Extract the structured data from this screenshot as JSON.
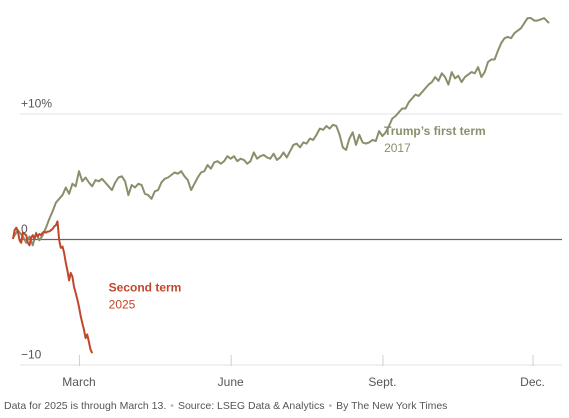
{
  "chart_data": {
    "type": "line",
    "y_unit": "% change",
    "ylim": [
      -10,
      18
    ],
    "yticks": [
      {
        "value": 10,
        "label": "+10%"
      },
      {
        "value": 0,
        "label": "0"
      },
      {
        "value": -10,
        "label": "−10"
      }
    ],
    "xticks": [
      {
        "day": 60,
        "label": "March"
      },
      {
        "day": 152,
        "label": "June"
      },
      {
        "day": 244,
        "label": "Sept."
      },
      {
        "day": 335,
        "label": "Dec."
      }
    ],
    "xlim": [
      0,
      365
    ],
    "grid": "horizontal",
    "series": [
      {
        "name": "Trump’s first term",
        "year": "2017",
        "color": "#8a8f6b",
        "label_at": {
          "day": 245,
          "value": 8.3
        },
        "points": [
          [
            20,
            0.1
          ],
          [
            23,
            0.7
          ],
          [
            26,
            0.2
          ],
          [
            28,
            -0.3
          ],
          [
            30,
            0.2
          ],
          [
            32,
            -0.5
          ],
          [
            34,
            0.5
          ],
          [
            36,
            -0.1
          ],
          [
            38,
            0.3
          ],
          [
            40,
            0.9
          ],
          [
            42,
            1.6
          ],
          [
            44,
            2.2
          ],
          [
            46,
            2.9
          ],
          [
            48,
            3.2
          ],
          [
            50,
            3.5
          ],
          [
            52,
            4.1
          ],
          [
            54,
            3.6
          ],
          [
            56,
            4.4
          ],
          [
            58,
            4.2
          ],
          [
            60,
            5.4
          ],
          [
            62,
            4.6
          ],
          [
            64,
            4.9
          ],
          [
            66,
            4.5
          ],
          [
            68,
            4.2
          ],
          [
            70,
            4.7
          ],
          [
            72,
            4.6
          ],
          [
            74,
            4.8
          ],
          [
            76,
            4.5
          ],
          [
            78,
            4.2
          ],
          [
            80,
            3.9
          ],
          [
            82,
            4.5
          ],
          [
            84,
            4.9
          ],
          [
            86,
            5.0
          ],
          [
            88,
            4.6
          ],
          [
            90,
            3.5
          ],
          [
            92,
            4.3
          ],
          [
            94,
            4.1
          ],
          [
            96,
            4.4
          ],
          [
            98,
            4.3
          ],
          [
            100,
            3.6
          ],
          [
            102,
            3.5
          ],
          [
            104,
            3.2
          ],
          [
            106,
            3.8
          ],
          [
            108,
            3.9
          ],
          [
            110,
            4.5
          ],
          [
            112,
            4.8
          ],
          [
            114,
            4.9
          ],
          [
            116,
            5.1
          ],
          [
            118,
            5.3
          ],
          [
            120,
            5.2
          ],
          [
            122,
            5.4
          ],
          [
            124,
            5.0
          ],
          [
            126,
            4.7
          ],
          [
            128,
            3.9
          ],
          [
            130,
            4.4
          ],
          [
            132,
            4.9
          ],
          [
            134,
            5.3
          ],
          [
            136,
            5.4
          ],
          [
            138,
            5.9
          ],
          [
            140,
            5.6
          ],
          [
            142,
            6.1
          ],
          [
            144,
            6.2
          ],
          [
            146,
            6.0
          ],
          [
            148,
            6.2
          ],
          [
            150,
            6.6
          ],
          [
            152,
            6.4
          ],
          [
            154,
            6.6
          ],
          [
            156,
            6.2
          ],
          [
            158,
            6.4
          ],
          [
            160,
            6.3
          ],
          [
            162,
            6.0
          ],
          [
            164,
            6.2
          ],
          [
            166,
            6.9
          ],
          [
            168,
            6.4
          ],
          [
            170,
            6.6
          ],
          [
            172,
            6.7
          ],
          [
            174,
            6.5
          ],
          [
            176,
            6.4
          ],
          [
            178,
            6.8
          ],
          [
            180,
            6.3
          ],
          [
            182,
            6.5
          ],
          [
            184,
            6.9
          ],
          [
            186,
            6.5
          ],
          [
            188,
            7.0
          ],
          [
            190,
            7.5
          ],
          [
            192,
            7.6
          ],
          [
            194,
            7.3
          ],
          [
            196,
            7.7
          ],
          [
            198,
            7.6
          ],
          [
            200,
            8.0
          ],
          [
            202,
            7.9
          ],
          [
            204,
            8.3
          ],
          [
            206,
            8.8
          ],
          [
            208,
            8.7
          ],
          [
            210,
            9.0
          ],
          [
            212,
            8.8
          ],
          [
            214,
            9.1
          ],
          [
            216,
            9.0
          ],
          [
            218,
            8.3
          ],
          [
            220,
            7.3
          ],
          [
            222,
            7.1
          ],
          [
            224,
            8.0
          ],
          [
            226,
            8.5
          ],
          [
            228,
            7.5
          ],
          [
            230,
            8.3
          ],
          [
            232,
            7.7
          ],
          [
            234,
            7.6
          ],
          [
            236,
            7.7
          ],
          [
            238,
            7.9
          ],
          [
            240,
            7.8
          ],
          [
            242,
            8.6
          ],
          [
            244,
            8.2
          ],
          [
            246,
            8.5
          ],
          [
            248,
            9.0
          ],
          [
            250,
            9.6
          ],
          [
            252,
            9.8
          ],
          [
            254,
            10.1
          ],
          [
            256,
            10.4
          ],
          [
            258,
            10.4
          ],
          [
            260,
            10.9
          ],
          [
            262,
            11.2
          ],
          [
            264,
            11.5
          ],
          [
            266,
            11.4
          ],
          [
            268,
            11.7
          ],
          [
            270,
            12.0
          ],
          [
            272,
            12.3
          ],
          [
            274,
            12.5
          ],
          [
            276,
            12.9
          ],
          [
            278,
            12.6
          ],
          [
            280,
            13.2
          ],
          [
            282,
            12.9
          ],
          [
            284,
            12.3
          ],
          [
            286,
            13.3
          ],
          [
            288,
            12.8
          ],
          [
            290,
            13.0
          ],
          [
            292,
            12.5
          ],
          [
            294,
            12.9
          ],
          [
            296,
            13.1
          ],
          [
            298,
            13.3
          ],
          [
            300,
            13.2
          ],
          [
            302,
            13.7
          ],
          [
            304,
            12.9
          ],
          [
            306,
            13.3
          ],
          [
            308,
            14.1
          ],
          [
            310,
            14.3
          ],
          [
            312,
            14.3
          ],
          [
            314,
            15.0
          ],
          [
            316,
            15.6
          ],
          [
            318,
            16.0
          ],
          [
            320,
            16.1
          ],
          [
            322,
            16.0
          ],
          [
            324,
            16.4
          ],
          [
            326,
            16.6
          ],
          [
            328,
            16.8
          ],
          [
            330,
            17.2
          ],
          [
            332,
            17.6
          ],
          [
            334,
            17.6
          ],
          [
            336,
            17.4
          ],
          [
            338,
            17.4
          ],
          [
            340,
            17.5
          ],
          [
            342,
            17.6
          ],
          [
            345,
            17.2
          ]
        ]
      },
      {
        "name": "Second term",
        "year": "2025",
        "color": "#c0472a",
        "label_at": {
          "day": 78,
          "value": -4.2
        },
        "points": [
          [
            20,
            0.0
          ],
          [
            21,
            0.7
          ],
          [
            22,
            0.9
          ],
          [
            23,
            0.6
          ],
          [
            24,
            -0.1
          ],
          [
            25,
            -0.3
          ],
          [
            26,
            0.5
          ],
          [
            27,
            0.4
          ],
          [
            28,
            0.3
          ],
          [
            29,
            -0.3
          ],
          [
            30,
            -0.5
          ],
          [
            31,
            0.1
          ],
          [
            32,
            0.3
          ],
          [
            33,
            0.0
          ],
          [
            34,
            0.4
          ],
          [
            35,
            0.2
          ],
          [
            36,
            0.4
          ],
          [
            37,
            0.3
          ],
          [
            38,
            0.5
          ],
          [
            39,
            0.6
          ],
          [
            40,
            0.5
          ],
          [
            41,
            0.6
          ],
          [
            42,
            0.6
          ],
          [
            43,
            0.7
          ],
          [
            44,
            0.8
          ],
          [
            45,
            1.0
          ],
          [
            46,
            1.1
          ],
          [
            47,
            1.4
          ],
          [
            48,
            -0.1
          ],
          [
            49,
            -0.7
          ],
          [
            50,
            -0.6
          ],
          [
            51,
            -1.1
          ],
          [
            52,
            -1.9
          ],
          [
            53,
            -2.5
          ],
          [
            54,
            -3.3
          ],
          [
            55,
            -2.7
          ],
          [
            56,
            -3.0
          ],
          [
            57,
            -3.8
          ],
          [
            58,
            -4.3
          ],
          [
            59,
            -4.8
          ],
          [
            60,
            -5.4
          ],
          [
            61,
            -6.1
          ],
          [
            62,
            -6.7
          ],
          [
            63,
            -7.2
          ],
          [
            64,
            -7.9
          ],
          [
            65,
            -7.6
          ],
          [
            66,
            -8.2
          ],
          [
            67,
            -8.8
          ],
          [
            68,
            -9.1
          ]
        ]
      }
    ],
    "notes": [
      "Data for 2025 is through March 13.",
      "Source: LSEG Data & Analytics",
      "By The New York Times"
    ]
  },
  "footer": {
    "note": "Data for 2025 is through March 13.",
    "source": "Source: LSEG Data & Analytics",
    "credit": "By The New York Times"
  }
}
